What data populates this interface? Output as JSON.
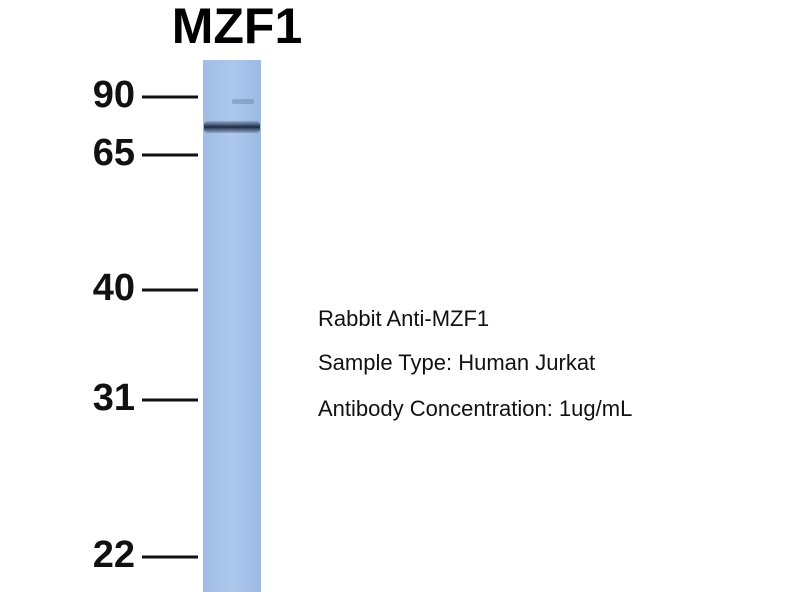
{
  "header": {
    "title": "MZF1"
  },
  "markers": [
    "90",
    "65",
    "40",
    "31",
    "22"
  ],
  "notes": [
    "Rabbit Anti-MZF1",
    "Sample Type: Human Jurkat",
    "Antibody Concentration: 1ug/mL"
  ]
}
